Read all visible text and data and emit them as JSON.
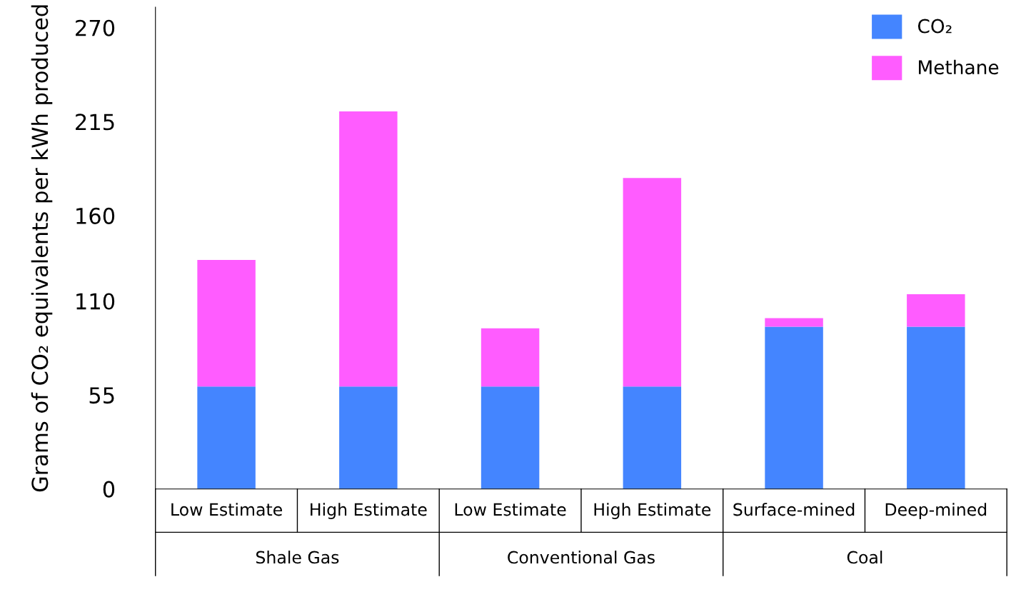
{
  "chart_data": {
    "type": "bar",
    "stacked": true,
    "ylabel": "Grams of CO₂ equivalents per kWh produced",
    "categories": [
      "Low Estimate",
      "High Estimate",
      "Low Estimate",
      "High Estimate",
      "Surface-mined",
      "Deep-mined"
    ],
    "series": [
      {
        "name": "CO₂",
        "color": "#4485ff",
        "values": [
          60,
          60,
          60,
          60,
          95,
          95
        ]
      },
      {
        "name": "Methane",
        "color": "#ff5cff",
        "values": [
          74,
          161,
          34,
          122,
          5,
          19
        ]
      }
    ],
    "annotations": [
      "Shale Gas",
      "Conventional Gas",
      "Coal"
    ],
    "ylim": [
      0,
      282
    ],
    "yticks": [
      0,
      55,
      110,
      160,
      215,
      270
    ],
    "legend": "top right",
    "grid": false
  }
}
